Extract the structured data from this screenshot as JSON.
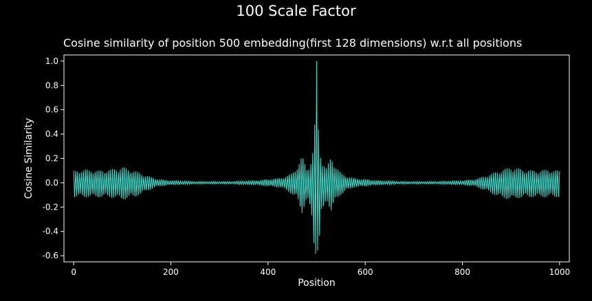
{
  "suptitle": "100 Scale Factor",
  "chart_data": {
    "type": "line",
    "title": "Cosine similarity of position 500 embedding(first 128 dimensions)  w.r.t all positions",
    "xlabel": "Position",
    "ylabel": "Cosine Similarity",
    "xlim": [
      -20,
      1020
    ],
    "ylim": [
      -0.65,
      1.05
    ],
    "xticks": [
      0,
      200,
      400,
      600,
      800,
      1000
    ],
    "yticks": [
      -0.6,
      -0.4,
      -0.2,
      0.0,
      0.2,
      0.4,
      0.6,
      0.8,
      1.0
    ],
    "grid": false,
    "line_color": "#40e0d0",
    "series": [
      {
        "x": [
          0,
          25,
          50,
          75,
          100,
          125,
          150,
          175,
          200,
          225,
          250,
          275,
          300,
          325,
          350,
          375,
          400,
          425,
          440,
          450,
          460,
          470,
          480,
          490,
          495,
          500,
          505,
          510,
          520,
          530,
          540,
          550,
          560,
          575,
          600,
          625,
          650,
          675,
          700,
          725,
          750,
          775,
          800,
          825,
          850,
          875,
          900,
          925,
          950,
          975,
          1000
        ],
        "upper": [
          0.1,
          0.11,
          0.1,
          0.11,
          0.13,
          0.1,
          0.06,
          0.03,
          0.02,
          0.015,
          0.01,
          0.01,
          0.01,
          0.01,
          0.015,
          0.02,
          0.03,
          0.04,
          0.06,
          0.08,
          0.14,
          0.22,
          0.12,
          0.2,
          0.35,
          1.0,
          0.35,
          0.2,
          0.12,
          0.22,
          0.14,
          0.08,
          0.06,
          0.04,
          0.03,
          0.02,
          0.015,
          0.01,
          0.01,
          0.01,
          0.01,
          0.015,
          0.02,
          0.03,
          0.06,
          0.1,
          0.13,
          0.11,
          0.1,
          0.11,
          0.1
        ],
        "lower": [
          -0.12,
          -0.12,
          -0.12,
          -0.12,
          -0.14,
          -0.12,
          -0.07,
          -0.03,
          -0.02,
          -0.015,
          -0.01,
          -0.01,
          -0.01,
          -0.01,
          -0.015,
          -0.02,
          -0.03,
          -0.04,
          -0.07,
          -0.1,
          -0.14,
          -0.25,
          -0.13,
          -0.3,
          -0.56,
          -0.6,
          -0.56,
          -0.3,
          -0.13,
          -0.25,
          -0.14,
          -0.1,
          -0.07,
          -0.04,
          -0.03,
          -0.02,
          -0.015,
          -0.01,
          -0.01,
          -0.01,
          -0.01,
          -0.015,
          -0.02,
          -0.03,
          -0.07,
          -0.12,
          -0.14,
          -0.12,
          -0.12,
          -0.12,
          -0.12
        ]
      }
    ]
  }
}
